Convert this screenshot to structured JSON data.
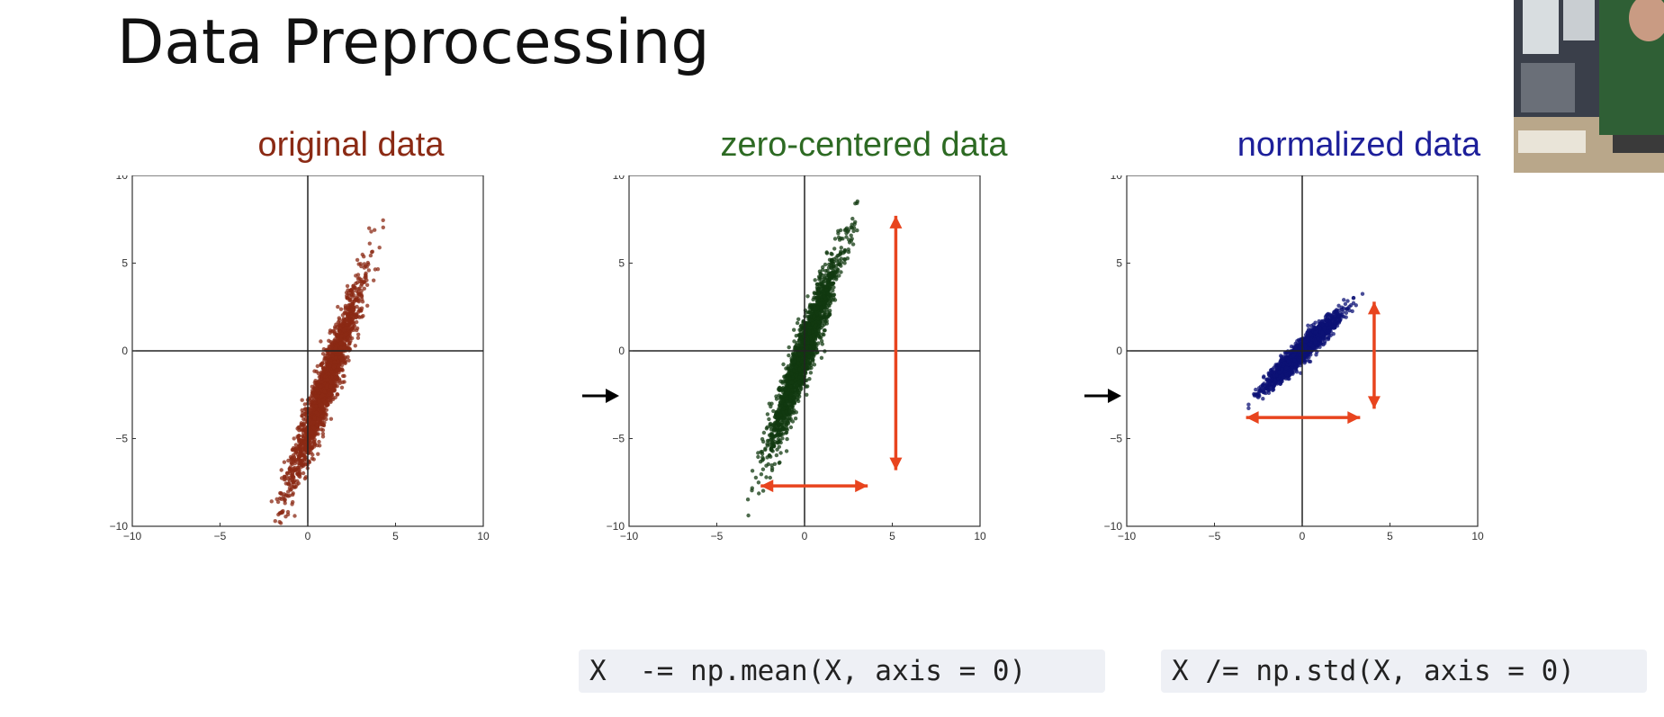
{
  "title": "Data Preprocessing",
  "panels": [
    {
      "title": "original data",
      "color": "#8b2a14"
    },
    {
      "title": "zero-centered data",
      "color": "#2d6a23"
    },
    {
      "title": "normalized data",
      "color": "#1d1f9a"
    }
  ],
  "code": {
    "center": "X  -= np.mean(X, axis = 0)",
    "normalize": "X /= np.std(X, axis = 0)"
  },
  "webcam": {
    "description_icon": "presenter-video-icon"
  },
  "chart_data": [
    {
      "type": "scatter",
      "title": "original data",
      "xlim": [
        -10,
        10
      ],
      "ylim": [
        -10,
        10
      ],
      "xticks": [
        -10,
        -5,
        0,
        5,
        10
      ],
      "yticks": [
        -10,
        -5,
        0,
        5,
        10
      ],
      "point_color": "#8b2a14",
      "center": [
        1,
        -2
      ],
      "std_x": 1.0,
      "std_y": 2.8,
      "correlation": 0.95,
      "n_points": 2000
    },
    {
      "type": "scatter",
      "title": "zero-centered data",
      "xlim": [
        -10,
        10
      ],
      "ylim": [
        -10,
        10
      ],
      "xticks": [
        -10,
        -5,
        0,
        5,
        10
      ],
      "yticks": [
        -10,
        -5,
        0,
        5,
        10
      ],
      "point_color": "#123a10",
      "center": [
        0,
        0
      ],
      "std_x": 1.0,
      "std_y": 2.8,
      "correlation": 0.95,
      "n_points": 2000,
      "arrows": [
        {
          "from": [
            -2.5,
            -7.7
          ],
          "to": [
            3.6,
            -7.7
          ],
          "color": "#e8441e"
        },
        {
          "from": [
            5.2,
            7.7
          ],
          "to": [
            5.2,
            -6.8
          ],
          "color": "#e8441e"
        }
      ]
    },
    {
      "type": "scatter",
      "title": "normalized data",
      "xlim": [
        -10,
        10
      ],
      "ylim": [
        -10,
        10
      ],
      "xticks": [
        -10,
        -5,
        0,
        5,
        10
      ],
      "yticks": [
        -10,
        -5,
        0,
        5,
        10
      ],
      "point_color": "#0c1275",
      "center": [
        0,
        0
      ],
      "std_x": 1.0,
      "std_y": 1.0,
      "correlation": 0.95,
      "n_points": 2000,
      "arrows": [
        {
          "from": [
            -3.2,
            -3.8
          ],
          "to": [
            3.3,
            -3.8
          ],
          "color": "#e8441e"
        },
        {
          "from": [
            4.1,
            2.8
          ],
          "to": [
            4.1,
            -3.3
          ],
          "color": "#e8441e"
        }
      ]
    }
  ]
}
